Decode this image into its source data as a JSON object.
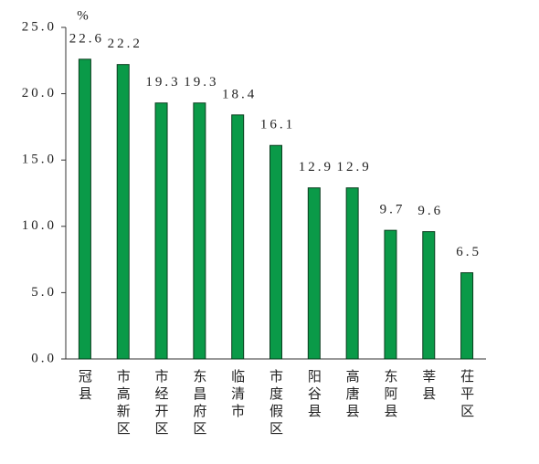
{
  "chart_data": {
    "type": "bar",
    "unit": "%",
    "categories": [
      "冠县",
      "市高新区",
      "市经开区",
      "东昌府区",
      "临清市",
      "市度假区",
      "阳谷县",
      "高唐县",
      "东阿县",
      "莘县",
      "茌平区"
    ],
    "values": [
      22.6,
      22.2,
      19.3,
      19.3,
      18.4,
      16.1,
      12.9,
      12.9,
      9.7,
      9.6,
      6.5
    ],
    "color": "#0a9a48",
    "ylim": [
      0,
      25
    ],
    "yticks": [
      {
        "value": 0,
        "label": "0.0"
      },
      {
        "value": 5,
        "label": "5.0"
      },
      {
        "value": 10,
        "label": "10.0"
      },
      {
        "value": 15,
        "label": "15.0"
      },
      {
        "value": 20,
        "label": "20.0"
      },
      {
        "value": 25,
        "label": "25.0"
      }
    ],
    "grid": false
  }
}
